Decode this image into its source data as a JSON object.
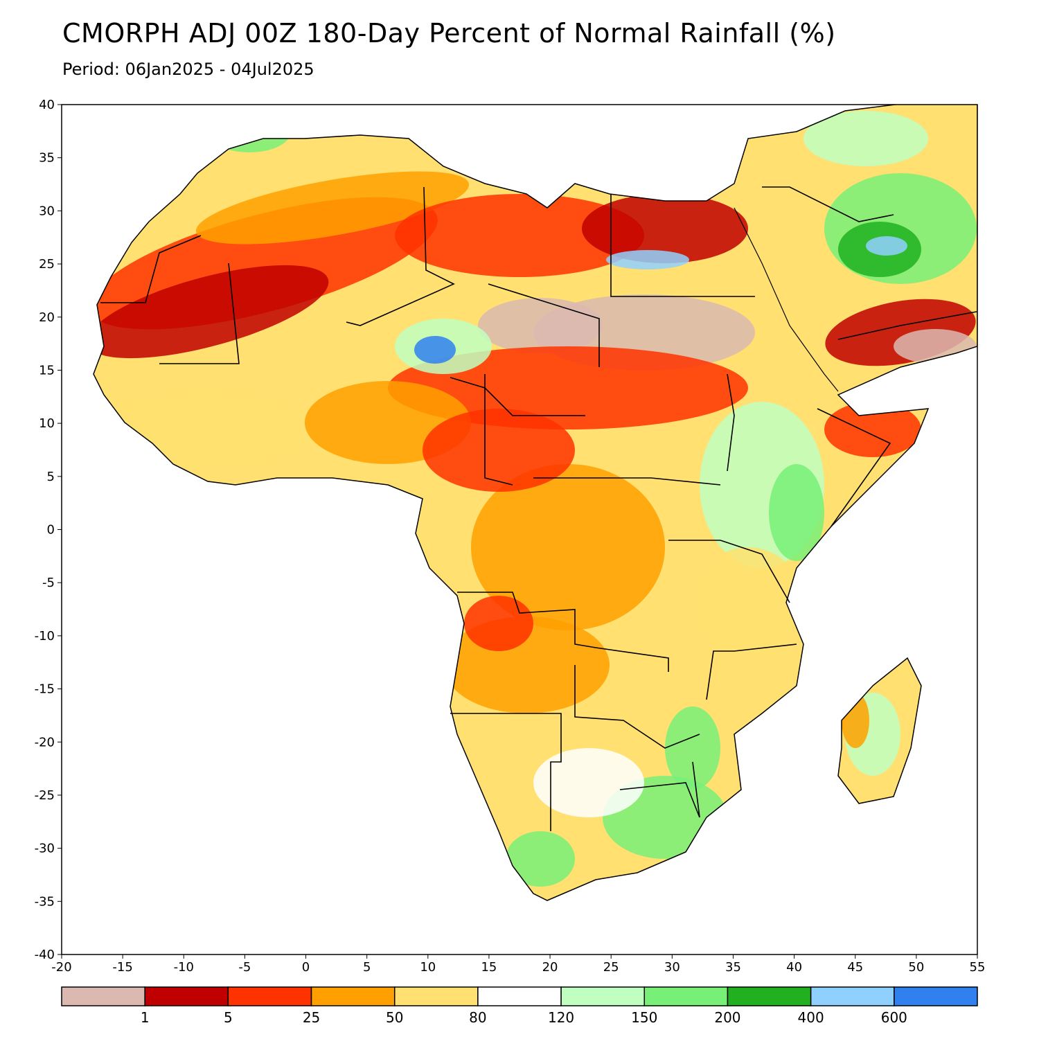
{
  "title": "CMORPH ADJ 00Z 180-Day Percent of Normal Rainfall (%)",
  "subtitle": "Period: 06Jan2025 - 04Jul2025",
  "map": {
    "lon_range": [
      -20,
      55
    ],
    "lat_range": [
      -40,
      40
    ],
    "lon_ticks": [
      -20,
      -15,
      -10,
      -5,
      0,
      5,
      10,
      15,
      20,
      25,
      30,
      35,
      40,
      45,
      50,
      55
    ],
    "lat_ticks": [
      40,
      35,
      30,
      25,
      20,
      15,
      10,
      5,
      0,
      -5,
      -10,
      -15,
      -20,
      -25,
      -30,
      -35,
      -40
    ],
    "lon_tick_labels": [
      "-20",
      "-15",
      "-10",
      "-5",
      "0",
      "5",
      "10",
      "15",
      "20",
      "25",
      "30",
      "35",
      "40",
      "45",
      "50",
      "55"
    ],
    "lat_tick_labels": [
      "40",
      "35",
      "30",
      "25",
      "20",
      "15",
      "10",
      "5",
      "0",
      "-5",
      "-10",
      "-15",
      "-20",
      "-25",
      "-30",
      "-35",
      "-40"
    ],
    "ocean_color": "#ffffff",
    "land_outline_color": "#000000"
  },
  "colorbar": {
    "colors": [
      "#dbb8b0",
      "#c00000",
      "#ff3300",
      "#ffa000",
      "#ffe070",
      "#ffffff",
      "#c0ffc0",
      "#78f078",
      "#20b020",
      "#90d0ff",
      "#3080f0"
    ],
    "labels": [
      "1",
      "5",
      "25",
      "50",
      "80",
      "120",
      "150",
      "200",
      "400",
      "600"
    ]
  },
  "regions": [
    {
      "name": "sahara-west-deficit",
      "color": "#ff3300"
    },
    {
      "name": "sahel-zero",
      "color": "#dbb8b0"
    },
    {
      "name": "central-africa-dry",
      "color": "#ffa000"
    },
    {
      "name": "east-africa-wet",
      "color": "#78f078"
    },
    {
      "name": "southern-africa-normal",
      "color": "#ffe070"
    },
    {
      "name": "arabia-wet",
      "color": "#20b020"
    },
    {
      "name": "chad-wet-spot",
      "color": "#3080f0"
    }
  ]
}
